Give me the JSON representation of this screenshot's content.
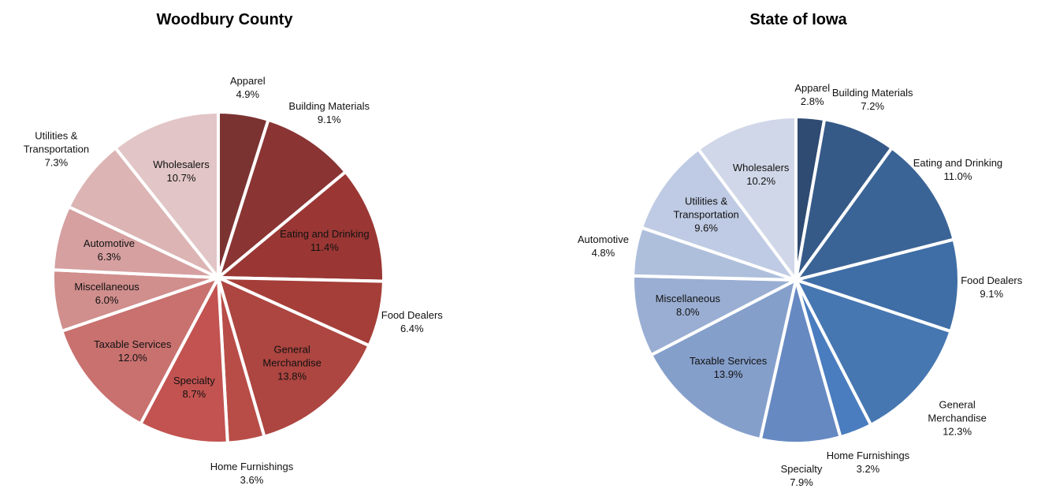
{
  "chart_data": [
    {
      "type": "pie",
      "title": "Woodbury County",
      "categories": [
        "Apparel",
        "Building Materials",
        "Eating and Drinking",
        "Food Dealers",
        "General Merchandise",
        "Home Furnishings",
        "Specialty",
        "Taxable Services",
        "Miscellaneous",
        "Automotive",
        "Utilities & Transportation",
        "Wholesalers"
      ],
      "values": [
        4.9,
        9.1,
        11.4,
        6.4,
        13.8,
        3.6,
        8.7,
        12.0,
        6.0,
        6.3,
        7.3,
        10.7
      ],
      "value_labels": [
        "4.9%",
        "9.1%",
        "11.4%",
        "6.4%",
        "13.8%",
        "3.6%",
        "8.7%",
        "12.0%",
        "6.0%",
        "6.3%",
        "7.3%",
        "10.7%"
      ],
      "colors": [
        "#7b3332",
        "#8a3434",
        "#9a3734",
        "#a53e38",
        "#ad4540",
        "#b84d48",
        "#c25350",
        "#c8716f",
        "#d08e8c",
        "#d6a0a0",
        "#dcb4b4",
        "#e2c5c6"
      ]
    },
    {
      "type": "pie",
      "title": "State of Iowa",
      "categories": [
        "Apparel",
        "Building Materials",
        "Eating and Drinking",
        "Food Dealers",
        "General Merchandise",
        "Home Furnishings",
        "Specialty",
        "Taxable Services",
        "Miscellaneous",
        "Automotive",
        "Utilities & Transportation",
        "Wholesalers"
      ],
      "values": [
        2.8,
        7.2,
        11.0,
        9.1,
        12.3,
        3.2,
        7.9,
        13.9,
        8.0,
        4.8,
        9.6,
        10.2
      ],
      "value_labels": [
        "2.8%",
        "7.2%",
        "11.0%",
        "9.1%",
        "12.3%",
        "3.2%",
        "7.9%",
        "13.9%",
        "8.0%",
        "4.8%",
        "9.6%",
        "10.2%"
      ],
      "colors": [
        "#2f4b72",
        "#365a88",
        "#3b6496",
        "#3f6ea6",
        "#4677b1",
        "#4a7dbf",
        "#6689c2",
        "#859fcb",
        "#9aaed3",
        "#aebfdc",
        "#bfcbe4",
        "#d0d7e8"
      ]
    }
  ]
}
